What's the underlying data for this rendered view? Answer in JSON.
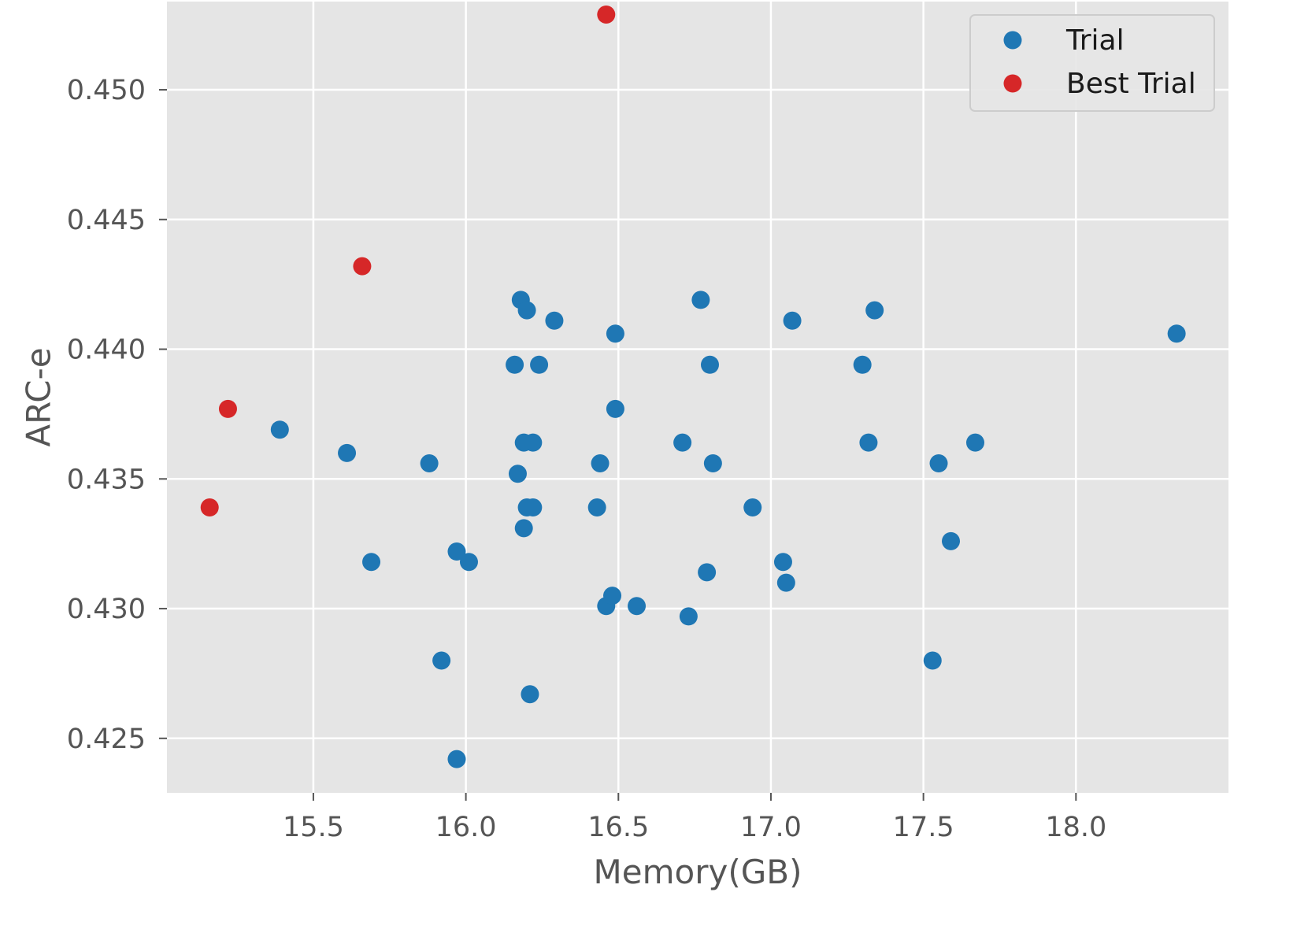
{
  "chart_data": {
    "type": "scatter",
    "xlabel": "Memory(GB)",
    "ylabel": "ARC-e",
    "xlim": [
      15.02,
      18.5
    ],
    "ylim": [
      0.4229,
      0.4534
    ],
    "xticks": [
      15.5,
      16.0,
      16.5,
      17.0,
      17.5,
      18.0
    ],
    "xtick_labels": [
      "15.5",
      "16.0",
      "16.5",
      "17.0",
      "17.5",
      "18.0"
    ],
    "yticks": [
      0.425,
      0.43,
      0.435,
      0.44,
      0.445,
      0.45
    ],
    "ytick_labels": [
      "0.425",
      "0.430",
      "0.435",
      "0.440",
      "0.445",
      "0.450"
    ],
    "grid": true,
    "style": "ggplot",
    "legend_position": "top-right",
    "series": [
      {
        "name": "Trial",
        "color": "#1f77b4",
        "points": [
          [
            15.39,
            0.4369
          ],
          [
            15.61,
            0.436
          ],
          [
            15.69,
            0.4318
          ],
          [
            15.88,
            0.4356
          ],
          [
            15.92,
            0.428
          ],
          [
            15.97,
            0.4322
          ],
          [
            15.97,
            0.4242
          ],
          [
            16.01,
            0.4318
          ],
          [
            16.16,
            0.4394
          ],
          [
            16.17,
            0.4352
          ],
          [
            16.18,
            0.4419
          ],
          [
            16.19,
            0.4364
          ],
          [
            16.19,
            0.4331
          ],
          [
            16.2,
            0.4339
          ],
          [
            16.2,
            0.4415
          ],
          [
            16.21,
            0.4267
          ],
          [
            16.22,
            0.4364
          ],
          [
            16.22,
            0.4339
          ],
          [
            16.24,
            0.4394
          ],
          [
            16.29,
            0.4411
          ],
          [
            16.43,
            0.4339
          ],
          [
            16.44,
            0.4356
          ],
          [
            16.46,
            0.4301
          ],
          [
            16.48,
            0.4305
          ],
          [
            16.49,
            0.4377
          ],
          [
            16.49,
            0.4406
          ],
          [
            16.56,
            0.4301
          ],
          [
            16.71,
            0.4364
          ],
          [
            16.73,
            0.4297
          ],
          [
            16.77,
            0.4419
          ],
          [
            16.79,
            0.4314
          ],
          [
            16.8,
            0.4394
          ],
          [
            16.81,
            0.4356
          ],
          [
            16.94,
            0.4339
          ],
          [
            17.04,
            0.4318
          ],
          [
            17.05,
            0.431
          ],
          [
            17.07,
            0.4411
          ],
          [
            17.3,
            0.4394
          ],
          [
            17.32,
            0.4364
          ],
          [
            17.34,
            0.4415
          ],
          [
            17.53,
            0.428
          ],
          [
            17.55,
            0.4356
          ],
          [
            17.59,
            0.4326
          ],
          [
            17.67,
            0.4364
          ],
          [
            18.33,
            0.4406
          ]
        ]
      },
      {
        "name": "Best Trial",
        "color": "#d62728",
        "points": [
          [
            15.16,
            0.4339
          ],
          [
            15.22,
            0.4377
          ],
          [
            15.66,
            0.4432
          ],
          [
            16.46,
            0.4529
          ]
        ]
      }
    ]
  },
  "colors": {
    "background": "#e5e5e5",
    "grid": "#ffffff",
    "trial": "#1f77b4",
    "best_trial": "#d62728"
  }
}
